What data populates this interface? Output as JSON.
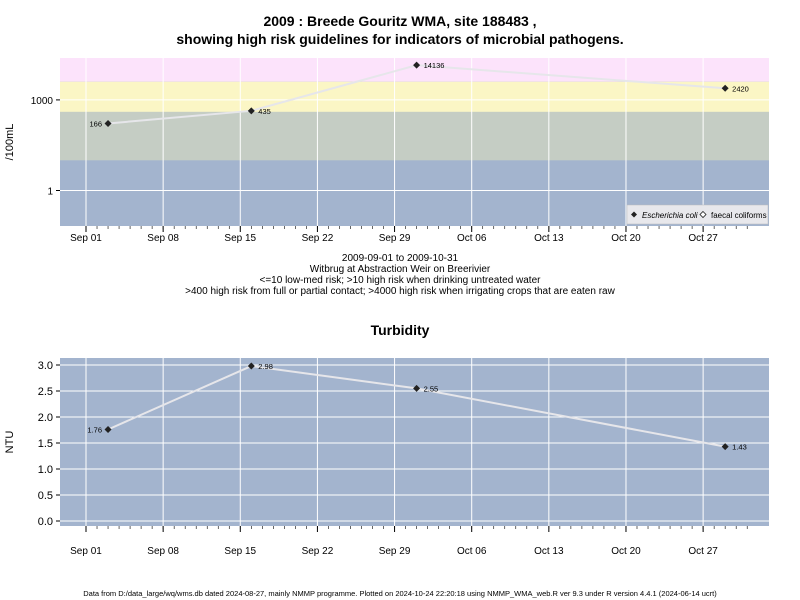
{
  "top_chart": {
    "title_line1": "2009 : Breede Gouritz WMA, site 188483 ,",
    "title_line2": "showing high risk guidelines for indicators of microbial pathogens.",
    "ylabel": "/100mL",
    "caption": [
      "2009-09-01 to 2009-10-31",
      "Witbrug at Abstraction Weir on Breerivier",
      "<=10 low-med risk; >10 high risk when drinking untreated water",
      ">400 high risk from full or partial contact; >4000 high risk when irrigating crops that are eaten raw"
    ],
    "legend": [
      {
        "label": "Escherichia coli",
        "marker": "filled-diamond"
      },
      {
        "label": "faecal coliforms",
        "marker": "open-diamond"
      }
    ],
    "colors": {
      "band_low": "#a3b4ce",
      "band_mid": "#c5cdc4",
      "band_high": "#fbf6c5",
      "band_top": "#fce3fb",
      "line": "#e6e6ea",
      "grid": "#ffffff",
      "point": "#222222"
    }
  },
  "bottom_chart": {
    "title": "Turbidity",
    "ylabel": "NTU",
    "colors": {
      "bg": "#a3b4ce",
      "line": "#e6e6ea",
      "grid": "#ffffff",
      "point": "#222222"
    }
  },
  "x_ticks": [
    "Sep 01",
    "Sep 08",
    "Sep 15",
    "Sep 22",
    "Sep 29",
    "Oct 06",
    "Oct 13",
    "Oct 20",
    "Oct 27"
  ],
  "chart_data": [
    {
      "type": "line",
      "title": "2009 : Breede Gouritz WMA, site 188483 , showing high risk guidelines for indicators of microbial pathogens.",
      "xlabel": "",
      "ylabel": "/100mL",
      "yscale": "log",
      "y_ticks": [
        "1",
        "1000"
      ],
      "thresholds": [
        10,
        400,
        4000
      ],
      "grid": true,
      "legend_position": "bottom-right",
      "series": [
        {
          "name": "Escherichia coli",
          "x": [
            "2009-09-03",
            "2009-09-16",
            "2009-10-01",
            "2009-10-29"
          ],
          "values": [
            166,
            435,
            14136,
            2420
          ],
          "labels": [
            "166",
            "435",
            "14136",
            "2420"
          ]
        }
      ]
    },
    {
      "type": "line",
      "title": "Turbidity",
      "xlabel": "",
      "ylabel": "NTU",
      "ylim": [
        0,
        3
      ],
      "y_ticks": [
        "0.0",
        "0.5",
        "1.0",
        "1.5",
        "2.0",
        "2.5",
        "3.0"
      ],
      "grid": true,
      "series": [
        {
          "x": [
            "2009-09-03",
            "2009-09-16",
            "2009-10-01",
            "2009-10-29"
          ],
          "values": [
            1.76,
            2.98,
            2.55,
            1.43
          ],
          "labels": [
            "1.76",
            "2.98",
            "2.55",
            "1.43"
          ]
        }
      ]
    }
  ],
  "footer": "Data from D:/data_large/wq/wms.db dated 2024-08-27, mainly NMMP programme. Plotted on 2024-10-24 22:20:18 using NMMP_WMA_web.R ver 9.3 under R version 4.4.1 (2024-06-14 ucrt)"
}
